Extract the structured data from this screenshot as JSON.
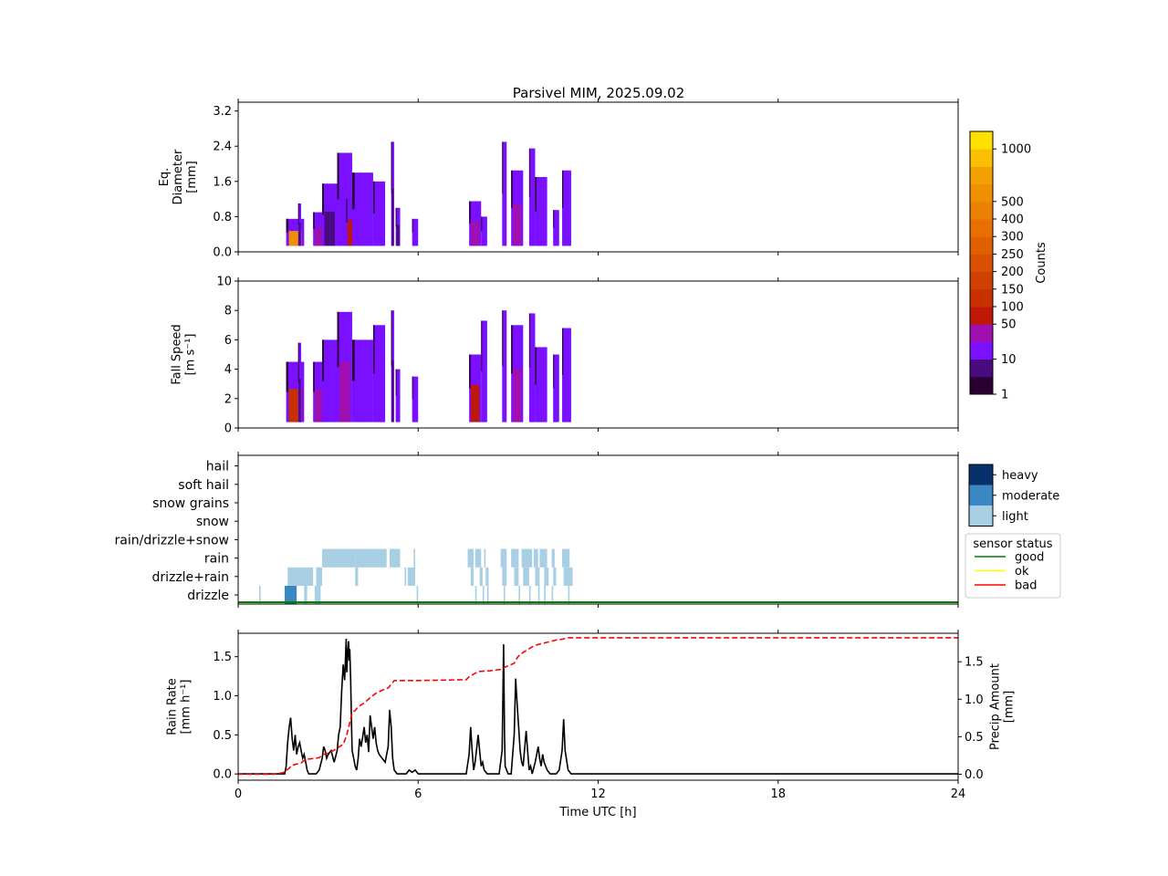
{
  "title": "Parsivel MIM, 2025.09.02",
  "colors": {
    "counts_scale": [
      "#2a0033",
      "#4a0a80",
      "#7a10ff",
      "#a010b0",
      "#c01808",
      "#c83000",
      "#d04000",
      "#d85000",
      "#e06000",
      "#e87000",
      "#ec8000",
      "#f09000",
      "#f4a000",
      "#f8c000",
      "#ffe000"
    ],
    "category_light": "#a9cfe5",
    "category_moderate": "#3a87c4",
    "category_heavy": "#08306b",
    "rain_rate_line": "#000000",
    "precip_line": "#ff0000",
    "status_good": "#008000",
    "status_ok": "#ffff00",
    "status_bad": "#ff0000"
  },
  "chart_data": [
    {
      "type": "heatmap",
      "panel": "diameter",
      "ylabel": [
        "Eq.",
        "Diameter",
        "[mm]"
      ],
      "ylim": [
        0,
        3.4
      ],
      "yticks": [
        "0.0",
        "0.8",
        "1.6",
        "2.4",
        "3.2"
      ],
      "ytick_values": [
        0,
        0.8,
        1.6,
        2.4,
        3.2
      ],
      "xlim": [
        0,
        24
      ],
      "data_columns": [
        {
          "t0": 1.6,
          "t1": 2.2,
          "ymax": 0.75,
          "level": 11
        },
        {
          "t0": 2.0,
          "t1": 2.1,
          "ymax": 1.1,
          "level": 1
        },
        {
          "t0": 2.5,
          "t1": 2.9,
          "ymax": 0.9,
          "level": 3
        },
        {
          "t0": 2.8,
          "t1": 3.3,
          "ymax": 1.55,
          "level": 1
        },
        {
          "t0": 3.3,
          "t1": 3.8,
          "ymax": 2.25,
          "level": 2
        },
        {
          "t0": 3.6,
          "t1": 3.9,
          "ymax": 1.2,
          "level": 4
        },
        {
          "t0": 3.8,
          "t1": 4.5,
          "ymax": 1.8,
          "level": 2
        },
        {
          "t0": 4.5,
          "t1": 4.9,
          "ymax": 1.6,
          "level": 2
        },
        {
          "t0": 5.1,
          "t1": 5.2,
          "ymax": 2.5,
          "level": 1
        },
        {
          "t0": 5.25,
          "t1": 5.4,
          "ymax": 1.0,
          "level": 1
        },
        {
          "t0": 5.8,
          "t1": 6.0,
          "ymax": 0.75,
          "level": 2
        },
        {
          "t0": 7.7,
          "t1": 8.1,
          "ymax": 1.15,
          "level": 3
        },
        {
          "t0": 8.1,
          "t1": 8.3,
          "ymax": 0.8,
          "level": 2
        },
        {
          "t0": 8.8,
          "t1": 8.95,
          "ymax": 2.5,
          "level": 2
        },
        {
          "t0": 9.1,
          "t1": 9.5,
          "ymax": 1.85,
          "level": 3
        },
        {
          "t0": 9.7,
          "t1": 9.9,
          "ymax": 2.35,
          "level": 2
        },
        {
          "t0": 9.9,
          "t1": 10.3,
          "ymax": 1.7,
          "level": 2
        },
        {
          "t0": 10.5,
          "t1": 10.7,
          "ymax": 0.95,
          "level": 2
        },
        {
          "t0": 10.8,
          "t1": 11.1,
          "ymax": 1.85,
          "level": 2
        }
      ]
    },
    {
      "type": "heatmap",
      "panel": "fall_speed",
      "ylabel": [
        "Fall Speed",
        "[m s⁻¹]"
      ],
      "ylim": [
        0,
        10
      ],
      "yticks": [
        "0",
        "2",
        "4",
        "6",
        "8",
        "10"
      ],
      "ytick_values": [
        0,
        2,
        4,
        6,
        8,
        10
      ],
      "xlim": [
        0,
        24
      ],
      "data_columns": [
        {
          "t0": 1.6,
          "t1": 2.2,
          "ymax": 4.5,
          "level": 5
        },
        {
          "t0": 2.0,
          "t1": 2.1,
          "ymax": 5.8,
          "level": 1
        },
        {
          "t0": 2.5,
          "t1": 2.9,
          "ymax": 4.5,
          "level": 3
        },
        {
          "t0": 2.8,
          "t1": 3.3,
          "ymax": 6.0,
          "level": 2
        },
        {
          "t0": 3.3,
          "t1": 3.8,
          "ymax": 7.9,
          "level": 3
        },
        {
          "t0": 3.8,
          "t1": 4.5,
          "ymax": 6.0,
          "level": 2
        },
        {
          "t0": 4.5,
          "t1": 4.9,
          "ymax": 7.0,
          "level": 2
        },
        {
          "t0": 5.1,
          "t1": 5.2,
          "ymax": 8.0,
          "level": 1
        },
        {
          "t0": 5.25,
          "t1": 5.4,
          "ymax": 4.0,
          "level": 2
        },
        {
          "t0": 5.8,
          "t1": 6.0,
          "ymax": 3.5,
          "level": 2
        },
        {
          "t0": 7.7,
          "t1": 8.1,
          "ymax": 5.0,
          "level": 4
        },
        {
          "t0": 8.1,
          "t1": 8.3,
          "ymax": 7.3,
          "level": 2
        },
        {
          "t0": 8.8,
          "t1": 8.95,
          "ymax": 8.0,
          "level": 2
        },
        {
          "t0": 9.1,
          "t1": 9.5,
          "ymax": 7.0,
          "level": 3
        },
        {
          "t0": 9.7,
          "t1": 9.9,
          "ymax": 7.8,
          "level": 2
        },
        {
          "t0": 9.9,
          "t1": 10.3,
          "ymax": 5.5,
          "level": 2
        },
        {
          "t0": 10.5,
          "t1": 10.7,
          "ymax": 5.0,
          "level": 2
        },
        {
          "t0": 10.8,
          "t1": 11.1,
          "ymax": 6.8,
          "level": 2
        }
      ]
    },
    {
      "type": "heatmap",
      "panel": "precip_type",
      "categories": [
        "drizzle",
        "drizzle+rain",
        "rain",
        "rain/drizzle+snow",
        "snow",
        "snow grains",
        "soft hail",
        "hail"
      ],
      "intensity_legend": [
        "heavy",
        "moderate",
        "light"
      ],
      "status_legend": {
        "title": "sensor status",
        "items": [
          "good",
          "ok",
          "bad"
        ]
      },
      "status_value": "good",
      "xlim": [
        0,
        24
      ],
      "segments": [
        {
          "category": "drizzle",
          "t0": 0.7,
          "t1": 0.75,
          "intensity": "light"
        },
        {
          "category": "drizzle",
          "t0": 1.55,
          "t1": 1.95,
          "intensity": "moderate"
        },
        {
          "category": "drizzle",
          "t0": 2.2,
          "t1": 2.3,
          "intensity": "light"
        },
        {
          "category": "drizzle",
          "t0": 2.55,
          "t1": 2.75,
          "intensity": "light"
        },
        {
          "category": "drizzle",
          "t0": 5.95,
          "t1": 6.0,
          "intensity": "light"
        },
        {
          "category": "drizzle",
          "t0": 7.9,
          "t1": 7.95,
          "intensity": "light"
        },
        {
          "category": "drizzle",
          "t0": 8.15,
          "t1": 8.2,
          "intensity": "light"
        },
        {
          "category": "drizzle",
          "t0": 8.3,
          "t1": 8.35,
          "intensity": "light"
        },
        {
          "category": "drizzle",
          "t0": 8.85,
          "t1": 8.9,
          "intensity": "light"
        },
        {
          "category": "drizzle",
          "t0": 9.35,
          "t1": 9.4,
          "intensity": "light"
        },
        {
          "category": "drizzle",
          "t0": 9.7,
          "t1": 9.75,
          "intensity": "light"
        },
        {
          "category": "drizzle",
          "t0": 10.0,
          "t1": 10.05,
          "intensity": "light"
        },
        {
          "category": "drizzle",
          "t0": 10.2,
          "t1": 10.25,
          "intensity": "light"
        },
        {
          "category": "drizzle",
          "t0": 10.45,
          "t1": 10.5,
          "intensity": "light"
        },
        {
          "category": "drizzle",
          "t0": 11.0,
          "t1": 11.05,
          "intensity": "light"
        },
        {
          "category": "drizzle+rain",
          "t0": 1.65,
          "t1": 2.5,
          "intensity": "light"
        },
        {
          "category": "drizzle+rain",
          "t0": 2.6,
          "t1": 2.8,
          "intensity": "light"
        },
        {
          "category": "drizzle+rain",
          "t0": 3.9,
          "t1": 4.0,
          "intensity": "light"
        },
        {
          "category": "drizzle+rain",
          "t0": 5.55,
          "t1": 5.6,
          "intensity": "light"
        },
        {
          "category": "drizzle+rain",
          "t0": 5.65,
          "t1": 5.9,
          "intensity": "light"
        },
        {
          "category": "drizzle+rain",
          "t0": 7.75,
          "t1": 7.85,
          "intensity": "light"
        },
        {
          "category": "drizzle+rain",
          "t0": 8.05,
          "t1": 8.15,
          "intensity": "light"
        },
        {
          "category": "drizzle+rain",
          "t0": 8.25,
          "t1": 8.35,
          "intensity": "light"
        },
        {
          "category": "drizzle+rain",
          "t0": 8.8,
          "t1": 8.95,
          "intensity": "light"
        },
        {
          "category": "drizzle+rain",
          "t0": 9.2,
          "t1": 9.35,
          "intensity": "light"
        },
        {
          "category": "drizzle+rain",
          "t0": 9.5,
          "t1": 9.7,
          "intensity": "light"
        },
        {
          "category": "drizzle+rain",
          "t0": 9.9,
          "t1": 10.05,
          "intensity": "light"
        },
        {
          "category": "drizzle+rain",
          "t0": 10.2,
          "t1": 10.35,
          "intensity": "light"
        },
        {
          "category": "drizzle+rain",
          "t0": 10.5,
          "t1": 10.6,
          "intensity": "light"
        },
        {
          "category": "drizzle+rain",
          "t0": 10.85,
          "t1": 11.15,
          "intensity": "light"
        },
        {
          "category": "rain",
          "t0": 2.8,
          "t1": 3.9,
          "intensity": "light"
        },
        {
          "category": "rain",
          "t0": 3.9,
          "t1": 4.95,
          "intensity": "light"
        },
        {
          "category": "rain",
          "t0": 5.05,
          "t1": 5.4,
          "intensity": "light"
        },
        {
          "category": "rain",
          "t0": 5.85,
          "t1": 5.9,
          "intensity": "light"
        },
        {
          "category": "rain",
          "t0": 7.65,
          "t1": 7.85,
          "intensity": "light"
        },
        {
          "category": "rain",
          "t0": 7.9,
          "t1": 8.1,
          "intensity": "light"
        },
        {
          "category": "rain",
          "t0": 8.2,
          "t1": 8.25,
          "intensity": "light"
        },
        {
          "category": "rain",
          "t0": 8.75,
          "t1": 8.95,
          "intensity": "light"
        },
        {
          "category": "rain",
          "t0": 9.1,
          "t1": 9.35,
          "intensity": "light"
        },
        {
          "category": "rain",
          "t0": 9.45,
          "t1": 9.8,
          "intensity": "light"
        },
        {
          "category": "rain",
          "t0": 9.85,
          "t1": 10.0,
          "intensity": "light"
        },
        {
          "category": "rain",
          "t0": 10.05,
          "t1": 10.3,
          "intensity": "light"
        },
        {
          "category": "rain",
          "t0": 10.45,
          "t1": 10.55,
          "intensity": "light"
        },
        {
          "category": "rain",
          "t0": 10.8,
          "t1": 11.05,
          "intensity": "light"
        }
      ]
    },
    {
      "type": "line",
      "panel": "rain_rate",
      "ylabel": [
        "Rain Rate",
        "[mm h⁻¹]"
      ],
      "ylim": [
        -0.08,
        1.8
      ],
      "yticks": [
        "0.0",
        "0.5",
        "1.0",
        "1.5"
      ],
      "ytick_values": [
        0,
        0.5,
        1.0,
        1.5
      ],
      "y2label": [
        "Precip Amount",
        "[mm]"
      ],
      "y2lim": [
        -0.08,
        1.88
      ],
      "y2ticks": [
        "0.0",
        "0.5",
        "1.0",
        "1.5"
      ],
      "y2tick_values": [
        0,
        0.5,
        1.0,
        1.5
      ],
      "xlabel": "Time UTC [h]",
      "xticks": [
        "0",
        "6",
        "12",
        "18",
        "24"
      ],
      "xtick_values": [
        0,
        6,
        12,
        18,
        24
      ],
      "xlim": [
        0,
        24
      ],
      "series": [
        {
          "x": [
            0,
            1.55,
            1.6,
            1.65,
            1.7,
            1.75,
            1.8,
            1.85,
            1.9,
            1.95,
            2.0,
            2.05,
            2.1,
            2.15,
            2.2,
            2.25,
            2.3,
            2.35,
            2.4,
            2.5,
            2.6,
            2.7,
            2.8,
            2.85,
            2.9,
            2.95,
            3.0,
            3.1,
            3.2,
            3.3,
            3.35,
            3.4,
            3.45,
            3.5,
            3.55,
            3.6,
            3.62,
            3.65,
            3.68,
            3.7,
            3.72,
            3.75,
            3.78,
            3.8,
            3.85,
            3.9,
            3.95,
            4.0,
            4.05,
            4.1,
            4.2,
            4.25,
            4.3,
            4.35,
            4.4,
            4.45,
            4.5,
            4.55,
            4.6,
            4.65,
            4.7,
            4.8,
            4.9,
            5.0,
            5.05,
            5.1,
            5.15,
            5.2,
            5.3,
            5.4,
            5.6,
            5.7,
            5.8,
            5.9,
            6.0,
            6.1,
            7.6,
            7.7,
            7.75,
            7.8,
            7.85,
            7.9,
            8.0,
            8.05,
            8.1,
            8.15,
            8.2,
            8.3,
            8.4,
            8.7,
            8.8,
            8.85,
            8.88,
            8.9,
            8.95,
            9.0,
            9.1,
            9.2,
            9.25,
            9.3,
            9.35,
            9.4,
            9.45,
            9.5,
            9.6,
            9.65,
            9.7,
            9.75,
            9.8,
            9.9,
            10.0,
            10.05,
            10.1,
            10.15,
            10.2,
            10.3,
            10.4,
            10.5,
            10.55,
            10.6,
            10.7,
            10.8,
            10.85,
            10.9,
            11.0,
            11.1,
            24
          ],
          "y": [
            0,
            0,
            0.1,
            0.4,
            0.6,
            0.72,
            0.45,
            0.3,
            0.5,
            0.25,
            0.35,
            0.4,
            0.3,
            0.2,
            0.25,
            0.15,
            0.05,
            0,
            0,
            0,
            0,
            0.05,
            0.2,
            0.35,
            0.3,
            0.2,
            0.25,
            0.3,
            0.15,
            0.3,
            0.5,
            0.6,
            1.05,
            1.4,
            1.2,
            1.73,
            1.3,
            1.55,
            1.7,
            1.45,
            1.6,
            1.2,
            0.6,
            0.3,
            0.2,
            0.1,
            0.05,
            0.2,
            0.45,
            0.35,
            0.6,
            0.4,
            0.5,
            0.28,
            0.75,
            0.6,
            0.45,
            0.6,
            0.4,
            0.3,
            0.25,
            0.2,
            0.15,
            0.35,
            0.82,
            0.6,
            0.2,
            0.05,
            0,
            0,
            0,
            0.05,
            0.02,
            0.05,
            0,
            0,
            0,
            0.25,
            0.6,
            0.3,
            0.05,
            0.15,
            0.5,
            0.3,
            0.1,
            0.15,
            0.05,
            0,
            0,
            0,
            0.3,
            1.66,
            0.5,
            0.1,
            0.05,
            0,
            0,
            0.5,
            1.22,
            0.9,
            0.6,
            0.3,
            0.15,
            0.1,
            0.55,
            0.3,
            0.05,
            0.1,
            0,
            0.15,
            0.35,
            0.2,
            0.1,
            0.25,
            0.15,
            0.05,
            0,
            0,
            0,
            0,
            0.05,
            0.3,
            0.7,
            0.3,
            0.05,
            0,
            0
          ],
          "style": "solid"
        },
        {
          "x": [
            0,
            1.2,
            1.5,
            1.7,
            1.8,
            2.1,
            2.2,
            2.3,
            2.7,
            2.8,
            3.0,
            3.2,
            3.5,
            3.6,
            3.7,
            3.8,
            3.9,
            4.0,
            4.2,
            4.4,
            4.6,
            4.8,
            5.0,
            5.1,
            5.2,
            6.0,
            7.6,
            7.7,
            8.0,
            8.4,
            8.8,
            8.9,
            9.2,
            9.3,
            9.4,
            9.6,
            9.8,
            10.0,
            10.3,
            10.6,
            10.8,
            11.0,
            24
          ],
          "y": [
            0,
            0,
            0.02,
            0.08,
            0.12,
            0.15,
            0.18,
            0.2,
            0.22,
            0.26,
            0.28,
            0.32,
            0.4,
            0.5,
            0.65,
            0.82,
            0.85,
            0.9,
            0.95,
            1.02,
            1.08,
            1.12,
            1.15,
            1.2,
            1.25,
            1.25,
            1.26,
            1.3,
            1.37,
            1.38,
            1.4,
            1.43,
            1.48,
            1.55,
            1.6,
            1.65,
            1.7,
            1.73,
            1.76,
            1.79,
            1.8,
            1.82,
            1.82
          ],
          "style": "dashed"
        }
      ]
    }
  ],
  "colorbar": {
    "label": "Counts",
    "ticks": [
      "1",
      "10",
      "50",
      "100",
      "150",
      "200",
      "250",
      "300",
      "400",
      "500",
      "1000"
    ]
  }
}
